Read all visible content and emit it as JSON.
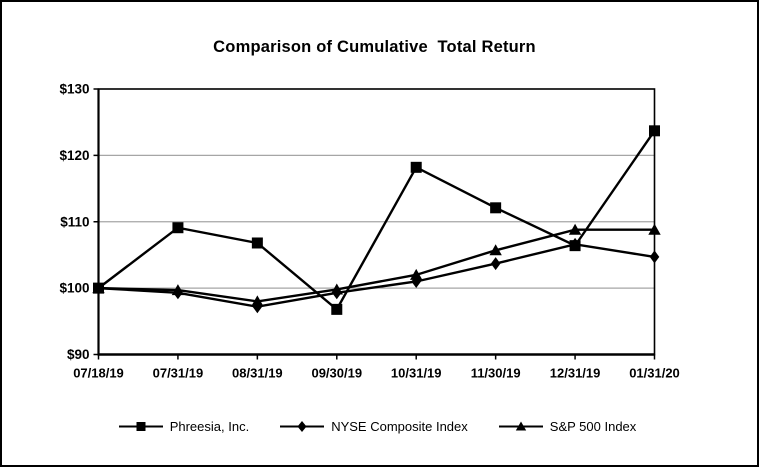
{
  "title": "Comparison of Cumulative  Total Return",
  "colors": {
    "line": "#000000",
    "grid": "#a6a6a6",
    "background": "#ffffff",
    "frame_border": "#000000"
  },
  "legend": [
    {
      "label": "Phreesia, Inc.",
      "marker": "square"
    },
    {
      "label": "NYSE Composite Index",
      "marker": "diamond"
    },
    {
      "label": "S&P 500 Index",
      "marker": "triangle"
    }
  ],
  "chart_data": {
    "type": "line",
    "title": "Comparison of Cumulative Total Return",
    "categories": [
      "07/18/19",
      "07/31/19",
      "08/31/19",
      "09/30/19",
      "10/31/19",
      "11/30/19",
      "12/31/19",
      "01/31/20"
    ],
    "series": [
      {
        "name": "Phreesia, Inc.",
        "marker": "square",
        "values": [
          100.0,
          109.1,
          106.8,
          96.8,
          118.2,
          112.1,
          106.4,
          123.7
        ]
      },
      {
        "name": "NYSE Composite Index",
        "marker": "diamond",
        "values": [
          100.0,
          99.3,
          97.2,
          99.3,
          101.0,
          103.7,
          106.6,
          104.7
        ]
      },
      {
        "name": "S&P 500 Index",
        "marker": "triangle",
        "values": [
          100.0,
          99.7,
          98.0,
          99.8,
          102.0,
          105.7,
          108.8,
          108.8
        ]
      }
    ],
    "xlabel": "",
    "ylabel": "",
    "ylim": [
      90,
      130
    ],
    "yticks": [
      90,
      100,
      110,
      120,
      130
    ],
    "ytick_labels": [
      "$90",
      "$100",
      "$110",
      "$120",
      "$130"
    ],
    "grid": "horizontal-inner",
    "legend_position": "bottom",
    "series_color": "#000000"
  }
}
